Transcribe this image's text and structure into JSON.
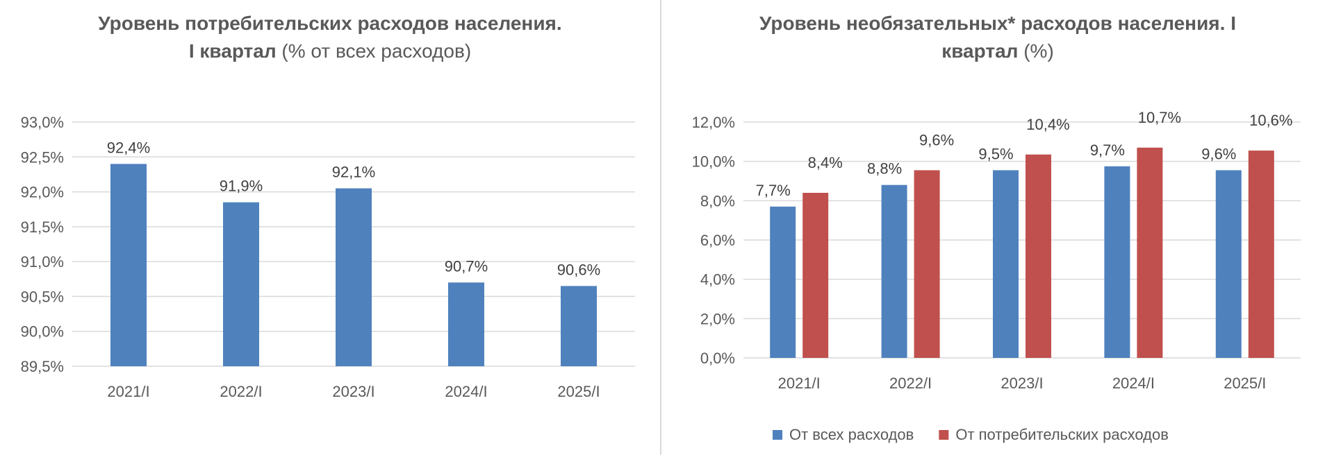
{
  "chart_data": [
    {
      "type": "bar",
      "title_bold": "Уровень потребительских расходов населения.",
      "title_bold2": "I квартал",
      "title_normal": "(% от всех расходов)",
      "categories": [
        "2021/I",
        "2022/I",
        "2023/I",
        "2024/I",
        "2025/I"
      ],
      "series": [
        {
          "values": [
            92.4,
            91.85,
            92.05,
            90.7,
            90.65
          ],
          "labels": [
            "92,4%",
            "91,9%",
            "92,1%",
            "90,7%",
            "90,6%"
          ],
          "color": "#4f81bd"
        }
      ],
      "ylim": [
        89.5,
        93.0
      ],
      "yticks": [
        "89,5%",
        "90,0%",
        "90,5%",
        "91,0%",
        "91,5%",
        "92,0%",
        "92,5%",
        "93,0%"
      ],
      "grid": true,
      "legend": "none"
    },
    {
      "type": "bar",
      "title_bold": "Уровень необязательных* расходов населения. I",
      "title_bold2": "квартал",
      "title_normal": "(%)",
      "categories": [
        "2021/I",
        "2022/I",
        "2023/I",
        "2024/I",
        "2025/I"
      ],
      "series": [
        {
          "name": "От всех расходов",
          "values": [
            7.7,
            8.8,
            9.55,
            9.75,
            9.55
          ],
          "labels": [
            "7,7%",
            "8,8%",
            "9,5%",
            "9,7%",
            "9,6%"
          ],
          "color": "#4f81bd"
        },
        {
          "name": "От потребительских расходов",
          "values": [
            8.4,
            9.55,
            10.35,
            10.7,
            10.55
          ],
          "labels": [
            "8,4%",
            "9,6%",
            "10,4%",
            "10,7%",
            "10,6%"
          ],
          "color": "#c0504d"
        }
      ],
      "ylim": [
        0,
        12
      ],
      "yticks": [
        "0,0%",
        "2,0%",
        "4,0%",
        "6,0%",
        "8,0%",
        "10,0%",
        "12,0%"
      ],
      "grid": true,
      "legend": "bottom"
    }
  ]
}
